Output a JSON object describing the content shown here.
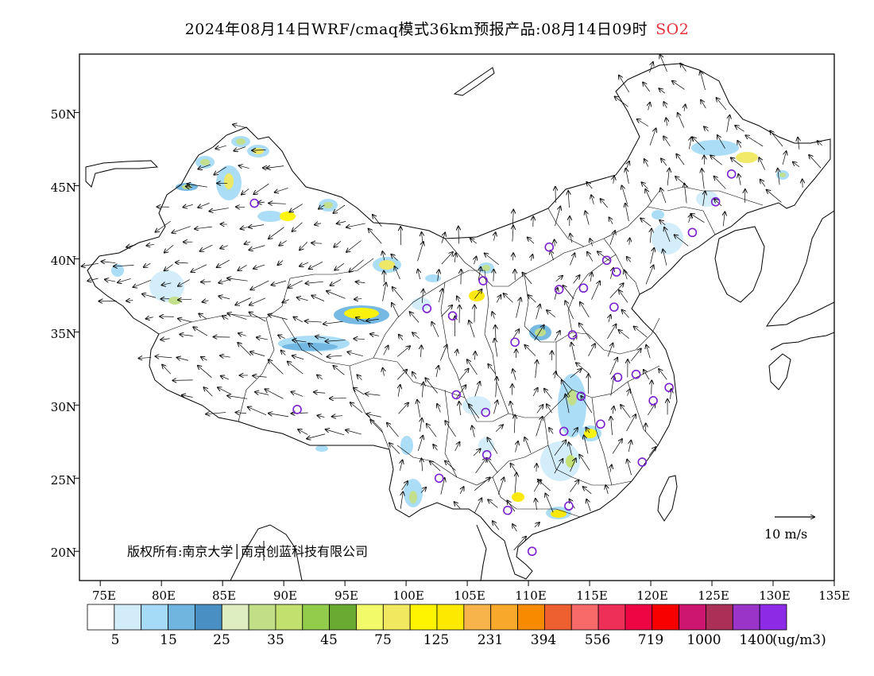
{
  "title": "2024年08月14日WRF/cmaq模式36km预报产品:08月14日09时",
  "species": "SO2",
  "lat_labels": [
    "50N",
    "45N",
    "40N",
    "35N",
    "30N",
    "25N",
    "20N"
  ],
  "lon_labels": [
    "75E",
    "80E",
    "85E",
    "90E",
    "95E",
    "100E",
    "105E",
    "110E",
    "115E",
    "120E",
    "125E",
    "130E",
    "135E"
  ],
  "copyright": "版权所有:南京大学│南京创蓝科技有限公司",
  "vector_scale_label": "10 m/s",
  "colorbar": {
    "unit": "(ug/m3)",
    "labels": [
      "5",
      "15",
      "25",
      "35",
      "45",
      "75",
      "125",
      "231",
      "394",
      "556",
      "719",
      "1000",
      "1400"
    ],
    "colors": [
      "#ffffff",
      "#d2ecfa",
      "#a6dbf7",
      "#6fb5e0",
      "#4a8fc4",
      "#dfeec0",
      "#c2de86",
      "#c2e06e",
      "#92cc4a",
      "#6aaa30",
      "#f3fa6a",
      "#f1e860",
      "#fff400",
      "#fde800",
      "#f6b44a",
      "#f8a82a",
      "#f88a00",
      "#ee6030",
      "#f86a6a",
      "#ee3058",
      "#ee0644",
      "#f80000",
      "#cc1670",
      "#aa3058",
      "#9a34c8",
      "#8c2ae6"
    ]
  },
  "stations": [
    [
      87.6,
      43.8
    ],
    [
      91.1,
      29.7
    ],
    [
      101.7,
      36.6
    ],
    [
      103.8,
      36.1
    ],
    [
      104.1,
      30.7
    ],
    [
      102.7,
      25.0
    ],
    [
      106.6,
      26.6
    ],
    [
      106.5,
      29.5
    ],
    [
      106.3,
      38.5
    ],
    [
      108.9,
      34.3
    ],
    [
      111.7,
      40.8
    ],
    [
      112.5,
      37.9
    ],
    [
      113.6,
      34.8
    ],
    [
      114.5,
      38.0
    ],
    [
      116.4,
      39.9
    ],
    [
      117.2,
      39.1
    ],
    [
      117.0,
      36.7
    ],
    [
      118.8,
      32.1
    ],
    [
      117.3,
      31.9
    ],
    [
      114.3,
      30.6
    ],
    [
      112.9,
      28.2
    ],
    [
      115.9,
      28.7
    ],
    [
      119.3,
      26.1
    ],
    [
      120.2,
      30.3
    ],
    [
      121.5,
      31.2
    ],
    [
      113.3,
      23.1
    ],
    [
      108.3,
      22.8
    ],
    [
      110.3,
      20.0
    ],
    [
      123.4,
      41.8
    ],
    [
      125.3,
      43.9
    ],
    [
      126.6,
      45.8
    ]
  ]
}
